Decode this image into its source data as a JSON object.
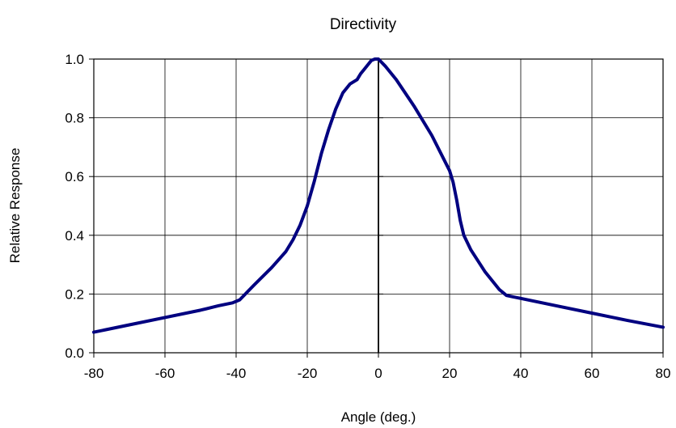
{
  "chart_data": {
    "type": "line",
    "title": "Directivity",
    "xlabel": "Angle (deg.)",
    "ylabel": "Relative Response",
    "xlim": [
      -80,
      80
    ],
    "ylim": [
      0,
      1
    ],
    "xticks": [
      -80,
      -60,
      -40,
      -20,
      0,
      20,
      40,
      60,
      80
    ],
    "yticks": [
      0,
      0.2,
      0.4,
      0.6,
      0.8,
      1
    ],
    "xtick_labels": [
      "-80",
      "-60",
      "-40",
      "-20",
      "0",
      "20",
      "40",
      "60",
      "80"
    ],
    "ytick_labels": [
      "0.0",
      "0.2",
      "0.4",
      "0.6",
      "0.8",
      "1.0"
    ],
    "grid": true,
    "series": [
      {
        "color": "#000080",
        "x": [
          -80,
          -70,
          -60,
          -50,
          -45,
          -41,
          -39,
          -35,
          -30,
          -26,
          -24,
          -22,
          -20,
          -18,
          -16,
          -14,
          -12,
          -10,
          -8,
          -6,
          -5,
          -4,
          -3,
          -2,
          -1,
          0,
          2,
          5,
          10,
          15,
          20,
          21,
          22,
          23,
          24,
          26,
          30,
          34,
          36,
          38,
          40,
          50,
          60,
          70,
          80
        ],
        "y": [
          0.07,
          0.095,
          0.12,
          0.145,
          0.16,
          0.17,
          0.18,
          0.23,
          0.29,
          0.345,
          0.385,
          0.435,
          0.5,
          0.585,
          0.68,
          0.76,
          0.83,
          0.885,
          0.915,
          0.93,
          0.95,
          0.965,
          0.98,
          0.995,
          1.0,
          1.0,
          0.975,
          0.93,
          0.84,
          0.74,
          0.62,
          0.58,
          0.52,
          0.45,
          0.4,
          0.35,
          0.275,
          0.215,
          0.195,
          0.19,
          0.185,
          0.16,
          0.135,
          0.11,
          0.087
        ]
      }
    ]
  }
}
